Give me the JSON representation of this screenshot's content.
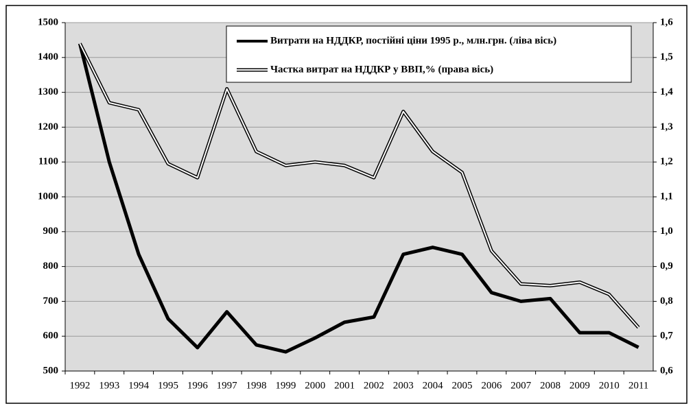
{
  "chart_data": {
    "type": "line",
    "categories": [
      "1992",
      "1993",
      "1994",
      "1995",
      "1996",
      "1997",
      "1998",
      "1999",
      "2000",
      "2001",
      "2002",
      "2003",
      "2004",
      "2005",
      "2006",
      "2007",
      "2008",
      "2009",
      "2010",
      "2011"
    ],
    "series": [
      {
        "name": "Витрати на НДДКР, постійні ціни 1995 р., млн.грн. (ліва вісь)",
        "color": "#000000",
        "values": [
          1440,
          1100,
          835,
          650,
          567,
          670,
          575,
          555,
          595,
          640,
          655,
          835,
          855,
          835,
          725,
          700,
          708,
          610,
          610,
          568
        ]
      },
      {
        "name": "Частка витрат на НДДКР у ВВП,% (права вісь)",
        "color": "#ffffff",
        "axis": "y2",
        "values": [
          1.54,
          1.37,
          1.35,
          1.195,
          1.155,
          1.41,
          1.23,
          1.19,
          1.2,
          1.19,
          1.155,
          1.345,
          1.23,
          1.17,
          0.945,
          0.85,
          0.845,
          0.855,
          0.82,
          0.725
        ]
      }
    ],
    "ylim": [
      500,
      1500
    ],
    "yticks": [
      500,
      600,
      700,
      800,
      900,
      1000,
      1100,
      1200,
      1300,
      1400,
      1500
    ],
    "y2lim": [
      0.6,
      1.6
    ],
    "y2ticks": [
      {
        "value": 0.6,
        "label": "0,6"
      },
      {
        "value": 0.7,
        "label": "0,7"
      },
      {
        "value": 0.8,
        "label": "0,8"
      },
      {
        "value": 0.9,
        "label": "0,9"
      },
      {
        "value": 1.0,
        "label": "1,0"
      },
      {
        "value": 1.1,
        "label": "1,1"
      },
      {
        "value": 1.2,
        "label": "1,2"
      },
      {
        "value": 1.3,
        "label": "1,3"
      },
      {
        "value": 1.4,
        "label": "1,4"
      },
      {
        "value": 1.5,
        "label": "1,5"
      },
      {
        "value": 1.6,
        "label": "1,6"
      }
    ],
    "grid": true
  }
}
